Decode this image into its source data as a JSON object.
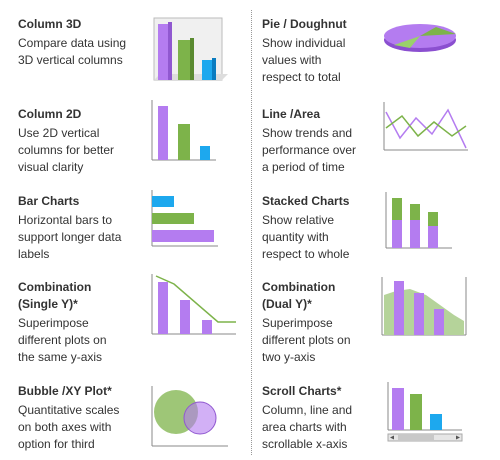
{
  "items": [
    {
      "title": "Column 3D",
      "desc": [
        "Compare data using",
        "3D vertical columns"
      ],
      "icon": "column-3d-thumbnail"
    },
    {
      "title": "Pie / Doughnut",
      "desc": [
        "Show individual",
        "values with",
        "respect to total"
      ],
      "icon": "pie-doughnut-thumbnail"
    },
    {
      "title": "Column 2D",
      "desc": [
        "Use 2D vertical",
        "columns for better",
        "visual clarity"
      ],
      "icon": "column-2d-thumbnail"
    },
    {
      "title": "Line /Area",
      "desc": [
        "Show trends and",
        "performance over",
        "a period of time"
      ],
      "icon": "line-area-thumbnail"
    },
    {
      "title": "Bar Charts",
      "desc": [
        "Horizontal bars to",
        "support longer data",
        "labels"
      ],
      "icon": "bar-chart-thumbnail"
    },
    {
      "title": "Stacked Charts",
      "desc": [
        "Show relative",
        "quantity with",
        "respect to whole"
      ],
      "icon": "stacked-chart-thumbnail"
    },
    {
      "title": [
        "Combination",
        "(Single Y)*"
      ],
      "desc": [
        "Superimpose",
        "different plots on",
        "the same y-axis"
      ],
      "icon": "combination-single-y-thumbnail"
    },
    {
      "title": [
        "Combination",
        "(Dual Y)*"
      ],
      "desc": [
        "Superimpose",
        "different plots on",
        "two y-axis"
      ],
      "icon": "combination-dual-y-thumbnail"
    },
    {
      "title": "Bubble /XY Plot*",
      "desc": [
        "Quantitative scales",
        "on both axes with",
        "option for third"
      ],
      "icon": "bubble-xy-thumbnail"
    },
    {
      "title": "Scroll Charts*",
      "desc": [
        "Column, line and",
        "area charts with",
        "scrollable x-axis"
      ],
      "icon": "scroll-chart-thumbnail"
    }
  ],
  "colors": {
    "purple": "#b47cf0",
    "green": "#7db34a",
    "blue": "#1da8ee",
    "text": "#333333"
  }
}
